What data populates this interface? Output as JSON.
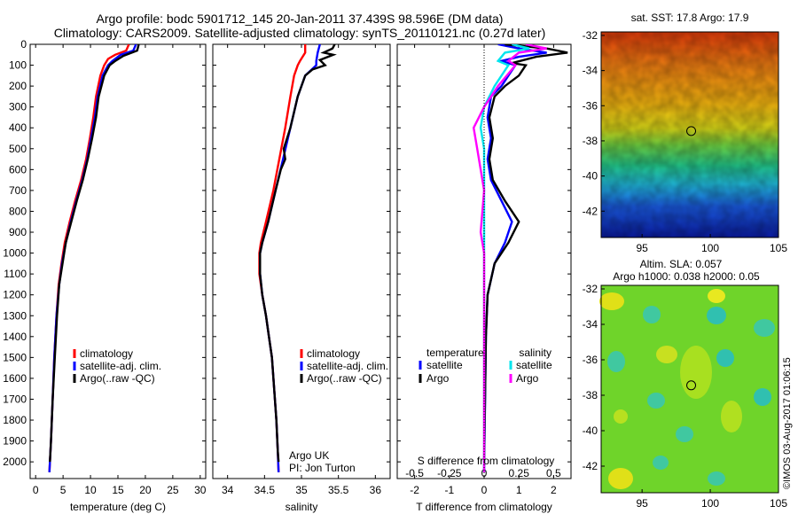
{
  "title_line1": "Argo profile: bodc 5901712_145 20-Jan-2011 37.439S 98.596E (DM data)",
  "title_line2": "Climatology: CARS2009. Satellite-adjusted climatology: synTS_20110121.nc (0.27d later)",
  "credit": "©IMOS 03-Aug-2017 01:06:15",
  "colors": {
    "climatology": "#ff0000",
    "satellite": "#0000ff",
    "argo": "#000000",
    "sal_satellite": "#00e5ee",
    "sal_argo": "#ff00ff"
  },
  "chart_data": [
    {
      "type": "line",
      "xlabel": "temperature (deg C)",
      "ylabel": "",
      "xlim": [
        -1,
        31
      ],
      "ylim": [
        2080,
        0
      ],
      "xticks": [
        0,
        5,
        10,
        15,
        20,
        25,
        30
      ],
      "yticks": [
        0,
        100,
        200,
        300,
        400,
        500,
        600,
        700,
        800,
        900,
        1000,
        1100,
        1200,
        1300,
        1400,
        1500,
        1600,
        1700,
        1800,
        1900,
        2000
      ],
      "legend": [
        "climatology",
        "satellite-adj. clim.",
        "Argo(..raw -QC)"
      ],
      "legend_position": "lower-left",
      "series": [
        {
          "name": "climatology",
          "color": "red",
          "points": [
            [
              17.0,
              0
            ],
            [
              16.5,
              30
            ],
            [
              14.5,
              50
            ],
            [
              13.2,
              70
            ],
            [
              12.5,
              100
            ],
            [
              11.8,
              150
            ],
            [
              11.0,
              250
            ],
            [
              10.5,
              350
            ],
            [
              9.9,
              450
            ],
            [
              9.2,
              550
            ],
            [
              8.3,
              650
            ],
            [
              7.2,
              750
            ],
            [
              6.2,
              850
            ],
            [
              5.3,
              950
            ],
            [
              4.7,
              1050
            ],
            [
              4.2,
              1150
            ],
            [
              3.8,
              1300
            ],
            [
              3.4,
              1500
            ],
            [
              3.1,
              1700
            ],
            [
              2.8,
              1900
            ],
            [
              2.6,
              2000
            ],
            [
              2.5,
              2050
            ]
          ]
        },
        {
          "name": "satellite-adj. clim.",
          "color": "blue",
          "points": [
            [
              18.3,
              0
            ],
            [
              17.8,
              30
            ],
            [
              15.5,
              50
            ],
            [
              14.0,
              80
            ],
            [
              13.2,
              100
            ],
            [
              12.2,
              150
            ],
            [
              11.3,
              250
            ],
            [
              10.8,
              350
            ],
            [
              10.1,
              450
            ],
            [
              9.4,
              550
            ],
            [
              8.5,
              650
            ],
            [
              7.4,
              750
            ],
            [
              6.4,
              850
            ],
            [
              5.5,
              950
            ],
            [
              4.8,
              1050
            ],
            [
              4.3,
              1150
            ],
            [
              3.8,
              1300
            ],
            [
              3.4,
              1500
            ],
            [
              3.1,
              1700
            ],
            [
              2.8,
              1900
            ],
            [
              2.6,
              2000
            ],
            [
              2.5,
              2050
            ]
          ]
        },
        {
          "name": "Argo(..raw -QC)",
          "color": "black",
          "points": [
            [
              18.8,
              0
            ],
            [
              18.5,
              30
            ],
            [
              16.0,
              55
            ],
            [
              14.5,
              80
            ],
            [
              13.5,
              100
            ],
            [
              12.5,
              150
            ],
            [
              11.5,
              250
            ],
            [
              11.0,
              350
            ],
            [
              10.3,
              450
            ],
            [
              9.5,
              550
            ],
            [
              8.6,
              650
            ],
            [
              7.5,
              750
            ],
            [
              6.5,
              850
            ],
            [
              5.5,
              950
            ],
            [
              4.9,
              1050
            ],
            [
              4.3,
              1150
            ],
            [
              3.9,
              1300
            ],
            [
              3.5,
              1500
            ],
            [
              3.1,
              1700
            ],
            [
              2.8,
              1900
            ],
            [
              2.6,
              2000
            ]
          ]
        }
      ]
    },
    {
      "type": "line",
      "xlabel": "salinity",
      "xlim": [
        33.8,
        36.2
      ],
      "ylim": [
        2080,
        0
      ],
      "xticks": [
        34,
        34.5,
        35,
        35.5,
        36
      ],
      "legend": [
        "climatology",
        "satellite-adj. clim.",
        "Argo(..raw -QC)"
      ],
      "legend_position": "lower-right",
      "annotation": [
        "Argo UK",
        "PI: Jon Turton"
      ],
      "series": [
        {
          "name": "climatology",
          "color": "red",
          "points": [
            [
              35.05,
              0
            ],
            [
              35.05,
              40
            ],
            [
              34.98,
              80
            ],
            [
              34.95,
              100
            ],
            [
              34.9,
              150
            ],
            [
              34.85,
              250
            ],
            [
              34.78,
              400
            ],
            [
              34.7,
              550
            ],
            [
              34.62,
              700
            ],
            [
              34.52,
              850
            ],
            [
              34.45,
              950
            ],
            [
              34.43,
              1000
            ],
            [
              34.43,
              1100
            ],
            [
              34.47,
              1200
            ],
            [
              34.52,
              1300
            ],
            [
              34.56,
              1400
            ],
            [
              34.6,
              1500
            ],
            [
              34.63,
              1650
            ],
            [
              34.66,
              1800
            ],
            [
              34.68,
              1950
            ],
            [
              34.69,
              2050
            ]
          ]
        },
        {
          "name": "satellite-adj. clim.",
          "color": "blue",
          "points": [
            [
              35.25,
              0
            ],
            [
              35.22,
              40
            ],
            [
              35.2,
              80
            ],
            [
              35.2,
              100
            ],
            [
              35.05,
              150
            ],
            [
              34.95,
              250
            ],
            [
              34.85,
              400
            ],
            [
              34.75,
              550
            ],
            [
              34.65,
              700
            ],
            [
              34.55,
              850
            ],
            [
              34.47,
              950
            ],
            [
              34.44,
              1000
            ],
            [
              34.44,
              1100
            ],
            [
              34.47,
              1200
            ],
            [
              34.52,
              1300
            ],
            [
              34.56,
              1400
            ],
            [
              34.6,
              1500
            ],
            [
              34.63,
              1650
            ],
            [
              34.66,
              1800
            ],
            [
              34.68,
              1950
            ],
            [
              34.69,
              2050
            ]
          ]
        },
        {
          "name": "Argo(..raw -QC)",
          "color": "black",
          "points": [
            [
              35.45,
              0
            ],
            [
              35.42,
              20
            ],
            [
              35.3,
              40
            ],
            [
              35.43,
              50
            ],
            [
              35.25,
              75
            ],
            [
              35.32,
              100
            ],
            [
              35.15,
              120
            ],
            [
              35.05,
              150
            ],
            [
              34.95,
              250
            ],
            [
              34.85,
              400
            ],
            [
              34.76,
              500
            ],
            [
              34.78,
              550
            ],
            [
              34.72,
              600
            ],
            [
              34.65,
              700
            ],
            [
              34.55,
              850
            ],
            [
              34.47,
              950
            ],
            [
              34.44,
              1000
            ],
            [
              34.44,
              1100
            ],
            [
              34.47,
              1200
            ],
            [
              34.52,
              1300
            ],
            [
              34.56,
              1400
            ],
            [
              34.6,
              1500
            ],
            [
              34.63,
              1650
            ],
            [
              34.66,
              1800
            ],
            [
              34.68,
              1950
            ],
            [
              34.69,
              2000
            ]
          ]
        }
      ]
    },
    {
      "type": "line",
      "xlabel": "T difference from climatology",
      "xlabel_top": "S difference from climatology",
      "xlim": [
        -2.5,
        2.5
      ],
      "ylim": [
        2080,
        0
      ],
      "xticks": [
        -2,
        -1,
        0,
        1,
        2
      ],
      "xticks_top": [
        "-0.5",
        "-0.25",
        "0",
        "0.25",
        "0.5"
      ],
      "xticks_top_positions": [
        -2,
        -1,
        0,
        1,
        2
      ],
      "legend_temperature_title": "temperature",
      "legend_salinity_title": "salinity",
      "legend": [
        "satellite",
        "Argo",
        "satellite",
        "Argo"
      ],
      "legend_position": "lower",
      "series": [
        {
          "name": "satellite",
          "color": "blue",
          "points": [
            [
              0.4,
              0
            ],
            [
              1.0,
              20
            ],
            [
              1.8,
              40
            ],
            [
              1.0,
              60
            ],
            [
              0.5,
              80
            ],
            [
              0.9,
              100
            ],
            [
              0.7,
              150
            ],
            [
              0.5,
              200
            ],
            [
              0.2,
              250
            ],
            [
              0.1,
              350
            ],
            [
              0.2,
              450
            ],
            [
              0.1,
              550
            ],
            [
              0.2,
              650
            ],
            [
              0.5,
              750
            ],
            [
              0.8,
              850
            ],
            [
              0.6,
              950
            ],
            [
              0.3,
              1050
            ],
            [
              0.1,
              1200
            ],
            [
              0.05,
              1400
            ],
            [
              0.0,
              2050
            ]
          ]
        },
        {
          "name": "Argo",
          "color": "black",
          "points": [
            [
              0.6,
              0
            ],
            [
              1.8,
              20
            ],
            [
              2.4,
              40
            ],
            [
              1.5,
              60
            ],
            [
              0.8,
              90
            ],
            [
              1.2,
              100
            ],
            [
              1.0,
              150
            ],
            [
              0.6,
              200
            ],
            [
              0.3,
              250
            ],
            [
              0.15,
              350
            ],
            [
              0.25,
              450
            ],
            [
              0.15,
              550
            ],
            [
              0.25,
              650
            ],
            [
              0.6,
              750
            ],
            [
              1.0,
              850
            ],
            [
              0.7,
              950
            ],
            [
              0.3,
              1050
            ],
            [
              0.1,
              1200
            ],
            [
              0.05,
              1400
            ],
            [
              0.0,
              2000
            ]
          ]
        },
        {
          "name": "satellite",
          "color": "cyan",
          "points": [
            [
              0.8,
              0
            ],
            [
              1.3,
              20
            ],
            [
              0.6,
              40
            ],
            [
              0.4,
              80
            ],
            [
              0.7,
              100
            ],
            [
              0.3,
              200
            ],
            [
              0.0,
              300
            ],
            [
              -0.1,
              400
            ],
            [
              0.0,
              500
            ],
            [
              0.0,
              700
            ],
            [
              0.0,
              1000
            ],
            [
              0.0,
              2050
            ]
          ]
        },
        {
          "name": "Argo",
          "color": "magenta",
          "points": [
            [
              1.2,
              0
            ],
            [
              1.8,
              20
            ],
            [
              1.0,
              40
            ],
            [
              0.7,
              80
            ],
            [
              0.9,
              100
            ],
            [
              0.4,
              200
            ],
            [
              0.0,
              300
            ],
            [
              -0.3,
              400
            ],
            [
              -0.2,
              500
            ],
            [
              -0.1,
              600
            ],
            [
              0.0,
              700
            ],
            [
              -0.1,
              900
            ],
            [
              0.0,
              1000
            ],
            [
              0.0,
              1300
            ],
            [
              0.0,
              2050
            ]
          ]
        }
      ]
    },
    {
      "type": "heatmap",
      "title": "sat. SST: 17.8 Argo: 17.9",
      "xlim": [
        92,
        105
      ],
      "ylim": [
        -43.5,
        -31.8
      ],
      "xticks": [
        95,
        100,
        105
      ],
      "yticks": [
        -32,
        -34,
        -36,
        -38,
        -40,
        -42
      ],
      "marker": {
        "lon": 98.6,
        "lat": -37.44
      }
    },
    {
      "type": "heatmap",
      "title_line1": "Altim. SLA: 0.057",
      "title_line2": "Argo h1000: 0.038 h2000: 0.05",
      "xlim": [
        92,
        105
      ],
      "ylim": [
        -43.5,
        -31.8
      ],
      "xticks": [
        95,
        100,
        105
      ],
      "yticks": [
        -32,
        -34,
        -36,
        -38,
        -40,
        -42
      ],
      "marker": {
        "lon": 98.6,
        "lat": -37.44
      }
    }
  ]
}
